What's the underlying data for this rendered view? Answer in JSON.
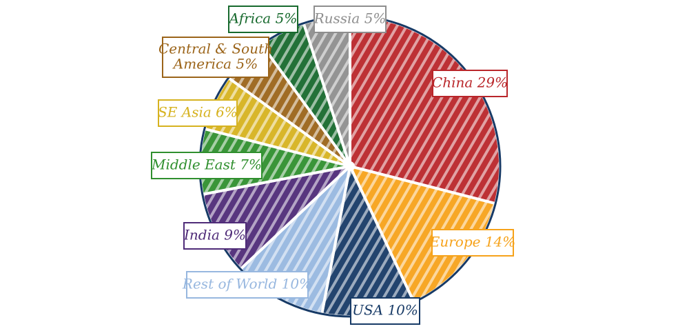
{
  "chart_data": {
    "type": "pie",
    "title": "",
    "slices": [
      {
        "label": "China 29%",
        "value": 29,
        "color": "#b9262a"
      },
      {
        "label": "Europe 14%",
        "value": 14,
        "color": "#f6a21a"
      },
      {
        "label": "USA 10%",
        "value": 10,
        "color": "#173a66"
      },
      {
        "label": "Rest of World 10%",
        "value": 10,
        "color": "#97b7df"
      },
      {
        "label": "India 9%",
        "value": 9,
        "color": "#4f2b78"
      },
      {
        "label": "Middle East 7%",
        "value": 7,
        "color": "#2f8f2e"
      },
      {
        "label": "SE Asia 6%",
        "value": 6,
        "color": "#d6b21f"
      },
      {
        "label": "Central & South\nAmerica 5%",
        "value": 5,
        "color": "#9b6419"
      },
      {
        "label": "Africa 5%",
        "value": 5,
        "color": "#17692d"
      },
      {
        "label": "Russia 5%",
        "value": 5,
        "color": "#8e8e8e"
      }
    ]
  }
}
